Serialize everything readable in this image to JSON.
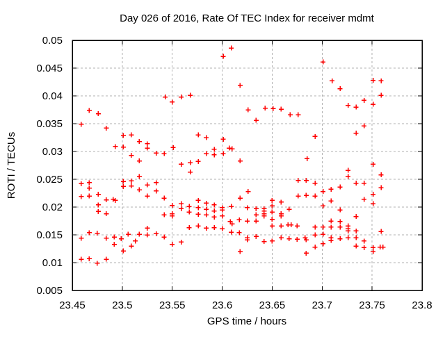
{
  "colors": {
    "background": "#ffffff",
    "marker": "#ff0000",
    "grid": "#b0b0b0",
    "border": "#000000",
    "text": "#000000"
  },
  "chart_data": {
    "type": "scatter",
    "title": "Day 026 of 2016, Rate Of TEC Index for receiver mdmt",
    "xlabel": "GPS time / hours",
    "ylabel": "ROTI / TECUs",
    "xlim": [
      23.45,
      23.8
    ],
    "ylim": [
      0.005,
      0.05
    ],
    "xticks": [
      23.45,
      23.5,
      23.55,
      23.6,
      23.65,
      23.7,
      23.75,
      23.8
    ],
    "xtick_labels": [
      "23.45",
      "23.5",
      "23.55",
      "23.6",
      "23.65",
      "23.7",
      "23.75",
      "23.8"
    ],
    "yticks": [
      0.005,
      0.01,
      0.015,
      0.02,
      0.025,
      0.03,
      0.035,
      0.04,
      0.045,
      0.05
    ],
    "ytick_labels": [
      "0.005",
      "0.01",
      "0.015",
      "0.02",
      "0.025",
      "0.03",
      "0.035",
      "0.04",
      "0.045",
      "0.05"
    ],
    "grid": "dashed",
    "legend": "none",
    "marker": "plus",
    "series": [
      {
        "name": "ROTI",
        "color": "#ff0000",
        "points": [
          [
            23.459,
            0.0349
          ],
          [
            23.467,
            0.0374
          ],
          [
            23.476,
            0.0368
          ],
          [
            23.484,
            0.0342
          ],
          [
            23.501,
            0.0329
          ],
          [
            23.509,
            0.033
          ],
          [
            23.493,
            0.0309
          ],
          [
            23.501,
            0.0308
          ],
          [
            23.517,
            0.0318
          ],
          [
            23.525,
            0.0314
          ],
          [
            23.525,
            0.0306
          ],
          [
            23.534,
            0.0297
          ],
          [
            23.542,
            0.0296
          ],
          [
            23.543,
            0.0398
          ],
          [
            23.55,
            0.0389
          ],
          [
            23.551,
            0.0307
          ],
          [
            23.559,
            0.0398
          ],
          [
            23.568,
            0.0401
          ],
          [
            23.509,
            0.0293
          ],
          [
            23.517,
            0.0283
          ],
          [
            23.559,
            0.0277
          ],
          [
            23.568,
            0.028
          ],
          [
            23.609,
            0.0486
          ],
          [
            23.601,
            0.0471
          ],
          [
            23.618,
            0.0419
          ],
          [
            23.626,
            0.0375
          ],
          [
            23.643,
            0.0378
          ],
          [
            23.651,
            0.0377
          ],
          [
            23.659,
            0.0376
          ],
          [
            23.668,
            0.0366
          ],
          [
            23.676,
            0.0366
          ],
          [
            23.634,
            0.0356
          ],
          [
            23.576,
            0.033
          ],
          [
            23.584,
            0.0325
          ],
          [
            23.601,
            0.0322
          ],
          [
            23.592,
            0.0304
          ],
          [
            23.607,
            0.0306
          ],
          [
            23.61,
            0.0305
          ],
          [
            23.584,
            0.0296
          ],
          [
            23.592,
            0.0294
          ],
          [
            23.601,
            0.0296
          ],
          [
            23.568,
            0.0263
          ],
          [
            23.576,
            0.0282
          ],
          [
            23.618,
            0.0283
          ],
          [
            23.701,
            0.0461
          ],
          [
            23.71,
            0.0427
          ],
          [
            23.718,
            0.0413
          ],
          [
            23.751,
            0.0428
          ],
          [
            23.759,
            0.0427
          ],
          [
            23.759,
            0.0401
          ],
          [
            23.742,
            0.0392
          ],
          [
            23.726,
            0.0383
          ],
          [
            23.734,
            0.038
          ],
          [
            23.751,
            0.0385
          ],
          [
            23.742,
            0.0346
          ],
          [
            23.734,
            0.0333
          ],
          [
            23.693,
            0.0327
          ],
          [
            23.685,
            0.0287
          ],
          [
            23.751,
            0.0277
          ],
          [
            23.459,
            0.0242
          ],
          [
            23.467,
            0.0244
          ],
          [
            23.467,
            0.0234
          ],
          [
            23.517,
            0.0255
          ],
          [
            23.501,
            0.0246
          ],
          [
            23.509,
            0.0247
          ],
          [
            23.501,
            0.0237
          ],
          [
            23.509,
            0.0238
          ],
          [
            23.525,
            0.024
          ],
          [
            23.534,
            0.0244
          ],
          [
            23.517,
            0.0231
          ],
          [
            23.534,
            0.0229
          ],
          [
            23.525,
            0.022
          ],
          [
            23.459,
            0.0219
          ],
          [
            23.467,
            0.022
          ],
          [
            23.476,
            0.0223
          ],
          [
            23.484,
            0.0213
          ],
          [
            23.491,
            0.0214
          ],
          [
            23.493,
            0.0212
          ],
          [
            23.476,
            0.0204
          ],
          [
            23.476,
            0.0192
          ],
          [
            23.484,
            0.0188
          ],
          [
            23.542,
            0.0216
          ],
          [
            23.55,
            0.0203
          ],
          [
            23.559,
            0.0206
          ],
          [
            23.559,
            0.0197
          ],
          [
            23.567,
            0.0201
          ],
          [
            23.567,
            0.0191
          ],
          [
            23.542,
            0.0186
          ],
          [
            23.55,
            0.0188
          ],
          [
            23.55,
            0.0184
          ],
          [
            23.567,
            0.0163
          ],
          [
            23.525,
            0.0162
          ],
          [
            23.467,
            0.0154
          ],
          [
            23.475,
            0.0153
          ],
          [
            23.459,
            0.0144
          ],
          [
            23.484,
            0.0144
          ],
          [
            23.492,
            0.0146
          ],
          [
            23.492,
            0.0133
          ],
          [
            23.499,
            0.0143
          ],
          [
            23.506,
            0.0151
          ],
          [
            23.513,
            0.0139
          ],
          [
            23.517,
            0.0151
          ],
          [
            23.525,
            0.015
          ],
          [
            23.534,
            0.0152
          ],
          [
            23.542,
            0.0146
          ],
          [
            23.501,
            0.0121
          ],
          [
            23.509,
            0.013
          ],
          [
            23.55,
            0.0133
          ],
          [
            23.559,
            0.0137
          ],
          [
            23.459,
            0.0106
          ],
          [
            23.467,
            0.0107
          ],
          [
            23.475,
            0.0099
          ],
          [
            23.484,
            0.0106
          ],
          [
            23.676,
            0.0248
          ],
          [
            23.684,
            0.0248
          ],
          [
            23.626,
            0.0228
          ],
          [
            23.618,
            0.0216
          ],
          [
            23.676,
            0.022
          ],
          [
            23.684,
            0.0221
          ],
          [
            23.576,
            0.0212
          ],
          [
            23.576,
            0.0199
          ],
          [
            23.576,
            0.0187
          ],
          [
            23.584,
            0.0207
          ],
          [
            23.584,
            0.0196
          ],
          [
            23.584,
            0.0186
          ],
          [
            23.592,
            0.0204
          ],
          [
            23.592,
            0.0193
          ],
          [
            23.592,
            0.0182
          ],
          [
            23.6,
            0.0199
          ],
          [
            23.6,
            0.0195
          ],
          [
            23.6,
            0.0184
          ],
          [
            23.609,
            0.0201
          ],
          [
            23.608,
            0.0174
          ],
          [
            23.61,
            0.017
          ],
          [
            23.617,
            0.0177
          ],
          [
            23.625,
            0.0199
          ],
          [
            23.625,
            0.0175
          ],
          [
            23.634,
            0.0197
          ],
          [
            23.634,
            0.0186
          ],
          [
            23.634,
            0.0175
          ],
          [
            23.642,
            0.0197
          ],
          [
            23.642,
            0.0193
          ],
          [
            23.642,
            0.0188
          ],
          [
            23.642,
            0.0184
          ],
          [
            23.65,
            0.0212
          ],
          [
            23.65,
            0.0202
          ],
          [
            23.65,
            0.0191
          ],
          [
            23.65,
            0.0178
          ],
          [
            23.659,
            0.0209
          ],
          [
            23.659,
            0.0188
          ],
          [
            23.659,
            0.0184
          ],
          [
            23.667,
            0.0196
          ],
          [
            23.576,
            0.0166
          ],
          [
            23.584,
            0.0162
          ],
          [
            23.592,
            0.0163
          ],
          [
            23.6,
            0.0161
          ],
          [
            23.609,
            0.0155
          ],
          [
            23.617,
            0.0154
          ],
          [
            23.625,
            0.0145
          ],
          [
            23.625,
            0.0141
          ],
          [
            23.634,
            0.0147
          ],
          [
            23.642,
            0.0138
          ],
          [
            23.65,
            0.0139
          ],
          [
            23.65,
            0.0166
          ],
          [
            23.659,
            0.0166
          ],
          [
            23.666,
            0.0168
          ],
          [
            23.669,
            0.0168
          ],
          [
            23.675,
            0.0166
          ],
          [
            23.659,
            0.0145
          ],
          [
            23.667,
            0.0143
          ],
          [
            23.675,
            0.0142
          ],
          [
            23.618,
            0.012
          ],
          [
            23.726,
            0.0266
          ],
          [
            23.726,
            0.0255
          ],
          [
            23.759,
            0.0258
          ],
          [
            23.693,
            0.0243
          ],
          [
            23.734,
            0.0243
          ],
          [
            23.742,
            0.0243
          ],
          [
            23.759,
            0.0235
          ],
          [
            23.693,
            0.022
          ],
          [
            23.701,
            0.0228
          ],
          [
            23.709,
            0.0232
          ],
          [
            23.718,
            0.0236
          ],
          [
            23.709,
            0.0211
          ],
          [
            23.701,
            0.0202
          ],
          [
            23.718,
            0.0195
          ],
          [
            23.742,
            0.0214
          ],
          [
            23.751,
            0.0223
          ],
          [
            23.751,
            0.0206
          ],
          [
            23.734,
            0.0183
          ],
          [
            23.709,
            0.0175
          ],
          [
            23.718,
            0.0174
          ],
          [
            23.693,
            0.0164
          ],
          [
            23.701,
            0.0164
          ],
          [
            23.709,
            0.0164
          ],
          [
            23.718,
            0.0164
          ],
          [
            23.726,
            0.0166
          ],
          [
            23.726,
            0.0161
          ],
          [
            23.726,
            0.0157
          ],
          [
            23.734,
            0.0157
          ],
          [
            23.683,
            0.0145
          ],
          [
            23.684,
            0.0141
          ],
          [
            23.693,
            0.015
          ],
          [
            23.701,
            0.0151
          ],
          [
            23.709,
            0.0145
          ],
          [
            23.709,
            0.014
          ],
          [
            23.718,
            0.0143
          ],
          [
            23.726,
            0.0145
          ],
          [
            23.734,
            0.0145
          ],
          [
            23.734,
            0.013
          ],
          [
            23.742,
            0.0139
          ],
          [
            23.742,
            0.0127
          ],
          [
            23.751,
            0.0127
          ],
          [
            23.751,
            0.012
          ],
          [
            23.759,
            0.0156
          ],
          [
            23.758,
            0.0128
          ],
          [
            23.761,
            0.0128
          ],
          [
            23.693,
            0.0128
          ],
          [
            23.684,
            0.0117
          ],
          [
            23.701,
            0.0134
          ]
        ]
      }
    ]
  }
}
